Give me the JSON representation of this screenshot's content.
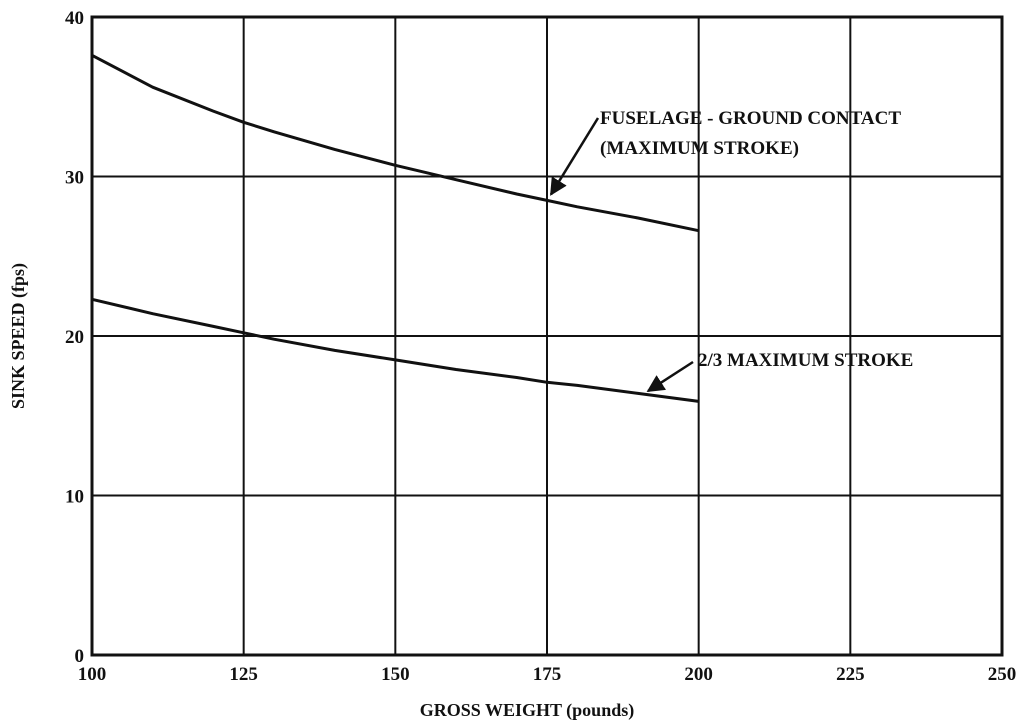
{
  "chart_data": {
    "type": "line",
    "title": "",
    "xlabel": "GROSS WEIGHT (pounds)",
    "ylabel": "SINK SPEED (fps)",
    "xlim": [
      100,
      250
    ],
    "ylim": [
      0,
      40
    ],
    "x_ticks": [
      "100",
      "125",
      "150",
      "175",
      "200",
      "225",
      "250"
    ],
    "y_ticks": [
      "0",
      "10",
      "20",
      "30",
      "40"
    ],
    "grid": true,
    "legend": "none",
    "series": [
      {
        "name": "FUSELAGE - GROUND CONTACT (MAXIMUM STROKE)",
        "color": "#111111",
        "x": [
          100,
          110,
          120,
          125,
          130,
          140,
          150,
          160,
          170,
          175,
          180,
          190,
          200
        ],
        "y": [
          37.6,
          35.6,
          34.1,
          33.4,
          32.8,
          31.7,
          30.7,
          29.8,
          28.9,
          28.5,
          28.1,
          27.4,
          26.6
        ]
      },
      {
        "name": "2/3 MAXIMUM STROKE",
        "color": "#111111",
        "x": [
          100,
          110,
          120,
          125,
          130,
          140,
          150,
          160,
          170,
          175,
          180,
          190,
          200
        ],
        "y": [
          22.3,
          21.4,
          20.6,
          20.2,
          19.8,
          19.1,
          18.5,
          17.9,
          17.4,
          17.1,
          16.9,
          16.4,
          15.9
        ]
      }
    ],
    "annotations": [
      {
        "line1": "FUSELAGE - GROUND CONTACT",
        "line2": "(MAXIMUM STROKE)",
        "points_to": {
          "x": 175,
          "y": 28.5
        }
      },
      {
        "line1": "2/3  MAXIMUM STROKE",
        "points_to": {
          "x": 191,
          "y": 16.3
        }
      }
    ]
  }
}
